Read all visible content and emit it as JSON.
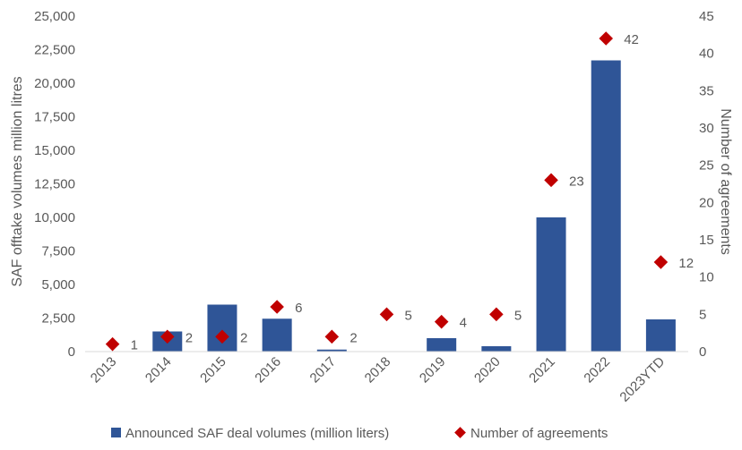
{
  "chart_data": {
    "type": "bar",
    "categories": [
      "2013",
      "2014",
      "2015",
      "2016",
      "2017",
      "2018",
      "2019",
      "2020",
      "2021",
      "2022",
      "2023YTD"
    ],
    "series": [
      {
        "name": "Announced SAF deal volumes (million liters)",
        "type": "bar",
        "axis": "left",
        "color": "#2F5597",
        "values": [
          0,
          1500,
          3500,
          2450,
          150,
          0,
          1000,
          400,
          10000,
          21700,
          2400
        ]
      },
      {
        "name": "Number of agreements",
        "type": "scatter",
        "marker": "diamond",
        "axis": "right",
        "color": "#C00000",
        "values": [
          1,
          2,
          2,
          6,
          2,
          5,
          4,
          5,
          23,
          42,
          12
        ]
      }
    ],
    "ylabel": "SAF offtake volumes million litres",
    "y2label": "Number of agreements",
    "ylim": [
      0,
      25000
    ],
    "y2lim": [
      0,
      45
    ],
    "yticks": [
      "0",
      "2,500",
      "5,000",
      "7,500",
      "10,000",
      "12,500",
      "15,000",
      "17,500",
      "20,000",
      "22,500",
      "25,000"
    ],
    "y2ticks": [
      "0",
      "5",
      "10",
      "15",
      "20",
      "25",
      "30",
      "35",
      "40",
      "45"
    ],
    "grid": false,
    "legend_position": "bottom"
  }
}
